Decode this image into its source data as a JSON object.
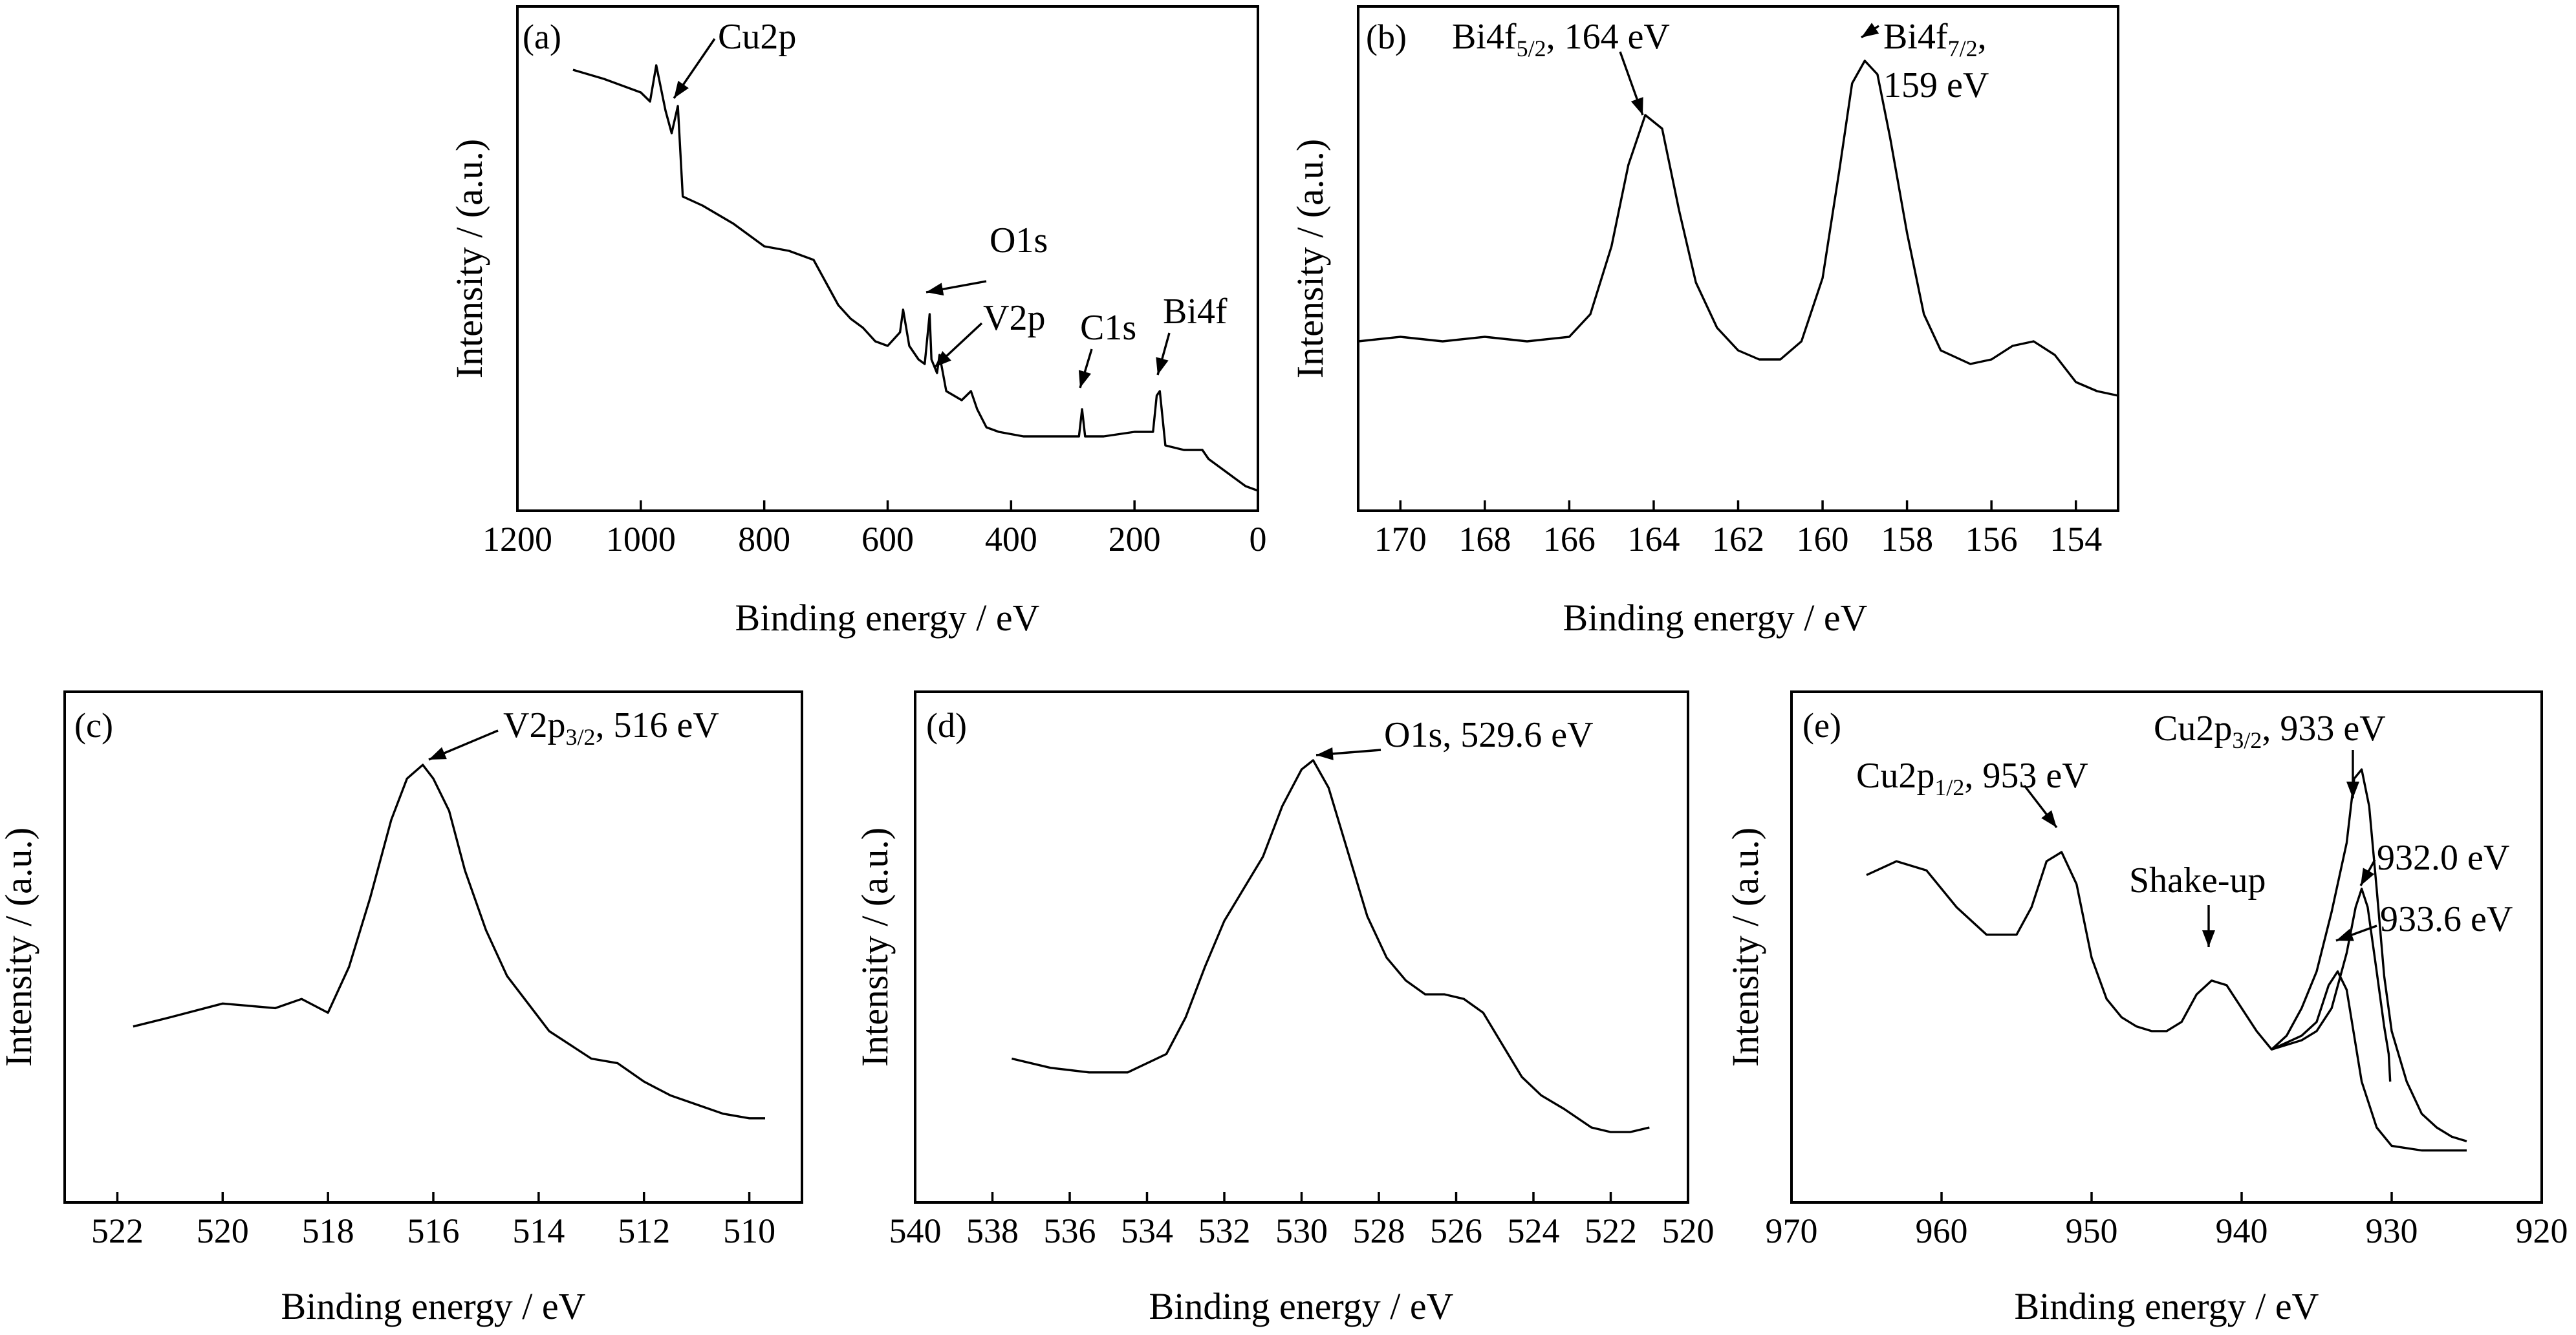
{
  "chart_data": [
    {
      "type": "line",
      "panel_label": "(a)",
      "xlabel": "Binding energy / eV",
      "ylabel": "Intensity / (a.u.)",
      "xlim": [
        1200,
        0
      ],
      "x_reversed": true,
      "xticks": [
        1200,
        1000,
        800,
        600,
        400,
        200,
        0
      ],
      "ylim": [
        0,
        1
      ],
      "series": [
        {
          "points": [
            [
              1110,
              0.91
            ],
            [
              1060,
              0.89
            ],
            [
              1000,
              0.86
            ],
            [
              985,
              0.84
            ],
            [
              975,
              0.92
            ],
            [
              960,
              0.82
            ],
            [
              950,
              0.77
            ],
            [
              940,
              0.83
            ],
            [
              932,
              0.63
            ],
            [
              900,
              0.61
            ],
            [
              850,
              0.57
            ],
            [
              800,
              0.52
            ],
            [
              760,
              0.51
            ],
            [
              720,
              0.49
            ],
            [
              700,
              0.44
            ],
            [
              680,
              0.39
            ],
            [
              660,
              0.36
            ],
            [
              640,
              0.34
            ],
            [
              620,
              0.31
            ],
            [
              600,
              0.3
            ],
            [
              580,
              0.33
            ],
            [
              575,
              0.38
            ],
            [
              565,
              0.3
            ],
            [
              550,
              0.27
            ],
            [
              540,
              0.26
            ],
            [
              532,
              0.37
            ],
            [
              529,
              0.27
            ],
            [
              520,
              0.24
            ],
            [
              516,
              0.28
            ],
            [
              505,
              0.2
            ],
            [
              480,
              0.18
            ],
            [
              465,
              0.2
            ],
            [
              455,
              0.16
            ],
            [
              440,
              0.12
            ],
            [
              420,
              0.11
            ],
            [
              380,
              0.1
            ],
            [
              340,
              0.1
            ],
            [
              300,
              0.1
            ],
            [
              290,
              0.1
            ],
            [
              285,
              0.16
            ],
            [
              280,
              0.1
            ],
            [
              250,
              0.1
            ],
            [
              200,
              0.11
            ],
            [
              170,
              0.11
            ],
            [
              164,
              0.19
            ],
            [
              159,
              0.2
            ],
            [
              150,
              0.08
            ],
            [
              120,
              0.07
            ],
            [
              90,
              0.07
            ],
            [
              80,
              0.05
            ],
            [
              60,
              0.03
            ],
            [
              40,
              0.01
            ],
            [
              20,
              -0.01
            ],
            [
              0,
              -0.02
            ]
          ]
        }
      ],
      "annotations": [
        {
          "text": "Cu2p",
          "x": 933,
          "y": 0.84
        },
        {
          "text": "O1s",
          "x": 530,
          "y": 0.37
        },
        {
          "text": "V2p",
          "x": 516,
          "y": 0.28
        },
        {
          "text": "C1s",
          "x": 285,
          "y": 0.16
        },
        {
          "text": "Bi4f",
          "x": 160,
          "y": 0.19
        }
      ]
    },
    {
      "type": "line",
      "panel_label": "(b)",
      "xlabel": "Binding energy / eV",
      "ylabel": "Intensity / (a.u.)",
      "xlim": [
        171,
        153
      ],
      "x_reversed": true,
      "xticks": [
        170,
        168,
        166,
        164,
        162,
        160,
        158,
        156,
        154
      ],
      "ylim": [
        0,
        1
      ],
      "series": [
        {
          "points": [
            [
              171,
              0.31
            ],
            [
              170,
              0.32
            ],
            [
              169,
              0.31
            ],
            [
              168,
              0.32
            ],
            [
              167,
              0.31
            ],
            [
              166,
              0.32
            ],
            [
              165.5,
              0.37
            ],
            [
              165,
              0.52
            ],
            [
              164.6,
              0.7
            ],
            [
              164.2,
              0.81
            ],
            [
              163.8,
              0.78
            ],
            [
              163.4,
              0.6
            ],
            [
              163,
              0.44
            ],
            [
              162.5,
              0.34
            ],
            [
              162,
              0.29
            ],
            [
              161.5,
              0.27
            ],
            [
              161,
              0.27
            ],
            [
              160.5,
              0.31
            ],
            [
              160,
              0.45
            ],
            [
              159.6,
              0.69
            ],
            [
              159.3,
              0.88
            ],
            [
              159,
              0.93
            ],
            [
              158.7,
              0.9
            ],
            [
              158.4,
              0.76
            ],
            [
              158,
              0.55
            ],
            [
              157.6,
              0.37
            ],
            [
              157.2,
              0.29
            ],
            [
              156.5,
              0.26
            ],
            [
              156,
              0.27
            ],
            [
              155.5,
              0.3
            ],
            [
              155,
              0.31
            ],
            [
              154.5,
              0.28
            ],
            [
              154,
              0.22
            ],
            [
              153.5,
              0.2
            ],
            [
              153,
              0.19
            ]
          ]
        }
      ],
      "annotations": [
        {
          "text": "Bi4f",
          "sub": "5/2",
          "tail": ", 164 eV",
          "x": 164.2,
          "y": 0.81
        },
        {
          "text": "Bi4f",
          "sub": "7/2",
          "tail": ",",
          "line2": "159 eV",
          "x": 159.0,
          "y": 0.93
        }
      ]
    },
    {
      "type": "line",
      "panel_label": "(c)",
      "xlabel": "Binding energy / eV",
      "ylabel": "Intensity / (a.u.)",
      "xlim": [
        523,
        509
      ],
      "x_reversed": true,
      "xticks": [
        522,
        520,
        518,
        516,
        514,
        512,
        510
      ],
      "ylim": [
        0,
        1
      ],
      "series": [
        {
          "points": [
            [
              521.7,
              0.32
            ],
            [
              521,
              0.34
            ],
            [
              520,
              0.37
            ],
            [
              519,
              0.36
            ],
            [
              518.5,
              0.38
            ],
            [
              518,
              0.35
            ],
            [
              517.6,
              0.45
            ],
            [
              517.2,
              0.6
            ],
            [
              516.8,
              0.77
            ],
            [
              516.5,
              0.86
            ],
            [
              516.2,
              0.89
            ],
            [
              516,
              0.86
            ],
            [
              515.7,
              0.79
            ],
            [
              515.4,
              0.66
            ],
            [
              515,
              0.53
            ],
            [
              514.6,
              0.43
            ],
            [
              514.2,
              0.37
            ],
            [
              513.8,
              0.31
            ],
            [
              513.4,
              0.28
            ],
            [
              513,
              0.25
            ],
            [
              512.5,
              0.24
            ],
            [
              512,
              0.2
            ],
            [
              511.5,
              0.17
            ],
            [
              511,
              0.15
            ],
            [
              510.5,
              0.13
            ],
            [
              510,
              0.12
            ],
            [
              509.7,
              0.12
            ]
          ]
        }
      ],
      "annotations": [
        {
          "text": "V2p",
          "sub": "3/2",
          "tail": ", 516 eV",
          "x": 516.2,
          "y": 0.89
        }
      ]
    },
    {
      "type": "line",
      "panel_label": "(d)",
      "xlabel": "Binding energy / eV",
      "ylabel": "Intensity / (a.u.)",
      "xlim": [
        540,
        520
      ],
      "x_reversed": true,
      "xticks": [
        540,
        538,
        536,
        534,
        532,
        530,
        528,
        526,
        524,
        522,
        520
      ],
      "ylim": [
        0,
        1
      ],
      "series": [
        {
          "points": [
            [
              537.5,
              0.25
            ],
            [
              536.5,
              0.23
            ],
            [
              535.5,
              0.22
            ],
            [
              534.5,
              0.22
            ],
            [
              533.5,
              0.26
            ],
            [
              533,
              0.34
            ],
            [
              532.5,
              0.45
            ],
            [
              532,
              0.55
            ],
            [
              531.5,
              0.62
            ],
            [
              531,
              0.69
            ],
            [
              530.5,
              0.8
            ],
            [
              530,
              0.88
            ],
            [
              529.7,
              0.9
            ],
            [
              529.3,
              0.84
            ],
            [
              528.8,
              0.7
            ],
            [
              528.3,
              0.56
            ],
            [
              527.8,
              0.47
            ],
            [
              527.3,
              0.42
            ],
            [
              526.8,
              0.39
            ],
            [
              526.3,
              0.39
            ],
            [
              525.8,
              0.38
            ],
            [
              525.3,
              0.35
            ],
            [
              524.8,
              0.28
            ],
            [
              524.3,
              0.21
            ],
            [
              523.8,
              0.17
            ],
            [
              523.2,
              0.14
            ],
            [
              522.5,
              0.1
            ],
            [
              522,
              0.09
            ],
            [
              521.5,
              0.09
            ],
            [
              521,
              0.1
            ]
          ]
        }
      ],
      "annotations": [
        {
          "text": "O1s, 529.6 eV",
          "x": 529.6,
          "y": 0.9
        }
      ]
    },
    {
      "type": "line",
      "panel_label": "(e)",
      "xlabel": "Binding energy / eV",
      "ylabel": "Intensity / (a.u.)",
      "xlim": [
        970,
        920
      ],
      "x_reversed": true,
      "xticks": [
        970,
        960,
        950,
        940,
        930,
        920
      ],
      "ylim": [
        0,
        1
      ],
      "series": [
        {
          "points": [
            [
              965,
              0.65
            ],
            [
              963,
              0.68
            ],
            [
              961,
              0.66
            ],
            [
              959,
              0.58
            ],
            [
              957,
              0.52
            ],
            [
              955,
              0.52
            ],
            [
              954,
              0.58
            ],
            [
              953,
              0.68
            ],
            [
              952,
              0.7
            ],
            [
              951,
              0.63
            ],
            [
              950,
              0.47
            ],
            [
              949,
              0.38
            ],
            [
              948,
              0.34
            ],
            [
              947,
              0.32
            ],
            [
              946,
              0.31
            ],
            [
              945,
              0.31
            ],
            [
              944,
              0.33
            ],
            [
              943,
              0.39
            ],
            [
              942,
              0.42
            ],
            [
              941,
              0.41
            ],
            [
              940,
              0.36
            ],
            [
              939,
              0.31
            ],
            [
              938,
              0.27
            ],
            [
              937,
              0.3
            ],
            [
              936,
              0.36
            ],
            [
              935,
              0.44
            ],
            [
              934,
              0.57
            ],
            [
              933,
              0.72
            ],
            [
              932.5,
              0.86
            ],
            [
              932,
              0.88
            ],
            [
              931.5,
              0.8
            ],
            [
              931,
              0.62
            ],
            [
              930.5,
              0.43
            ],
            [
              930,
              0.31
            ],
            [
              929,
              0.2
            ],
            [
              928,
              0.13
            ],
            [
              927,
              0.1
            ],
            [
              926,
              0.08
            ],
            [
              925,
              0.07
            ]
          ]
        },
        {
          "points": [
            [
              938,
              0.27
            ],
            [
              936,
              0.3
            ],
            [
              935,
              0.33
            ],
            [
              934.2,
              0.41
            ],
            [
              933.6,
              0.44
            ],
            [
              933,
              0.4
            ],
            [
              932.5,
              0.3
            ],
            [
              932,
              0.2
            ],
            [
              931,
              0.1
            ],
            [
              930,
              0.06
            ],
            [
              928,
              0.05
            ],
            [
              925,
              0.05
            ]
          ]
        },
        {
          "points": [
            [
              938,
              0.27
            ],
            [
              936,
              0.29
            ],
            [
              935,
              0.31
            ],
            [
              934,
              0.36
            ],
            [
              933,
              0.48
            ],
            [
              932.4,
              0.58
            ],
            [
              932,
              0.62
            ],
            [
              931.6,
              0.58
            ],
            [
              931,
              0.44
            ],
            [
              930.5,
              0.32
            ],
            [
              930.2,
              0.26
            ],
            [
              930.1,
              0.2
            ]
          ]
        }
      ],
      "annotations": [
        {
          "text": "Cu2p",
          "sub": "1/2",
          "tail": ", 953 eV",
          "x": 952.3,
          "y": 0.7
        },
        {
          "text": "Cu2p",
          "sub": "3/2",
          "tail": ", 933 eV",
          "x": 932.2,
          "y": 0.88
        },
        {
          "text": "Shake-up",
          "x": 942.2,
          "y": 0.42
        },
        {
          "text": "932.0 eV",
          "x": 932.0,
          "y": 0.62
        },
        {
          "text": "933.6 eV",
          "x": 933.6,
          "y": 0.44
        }
      ]
    }
  ]
}
